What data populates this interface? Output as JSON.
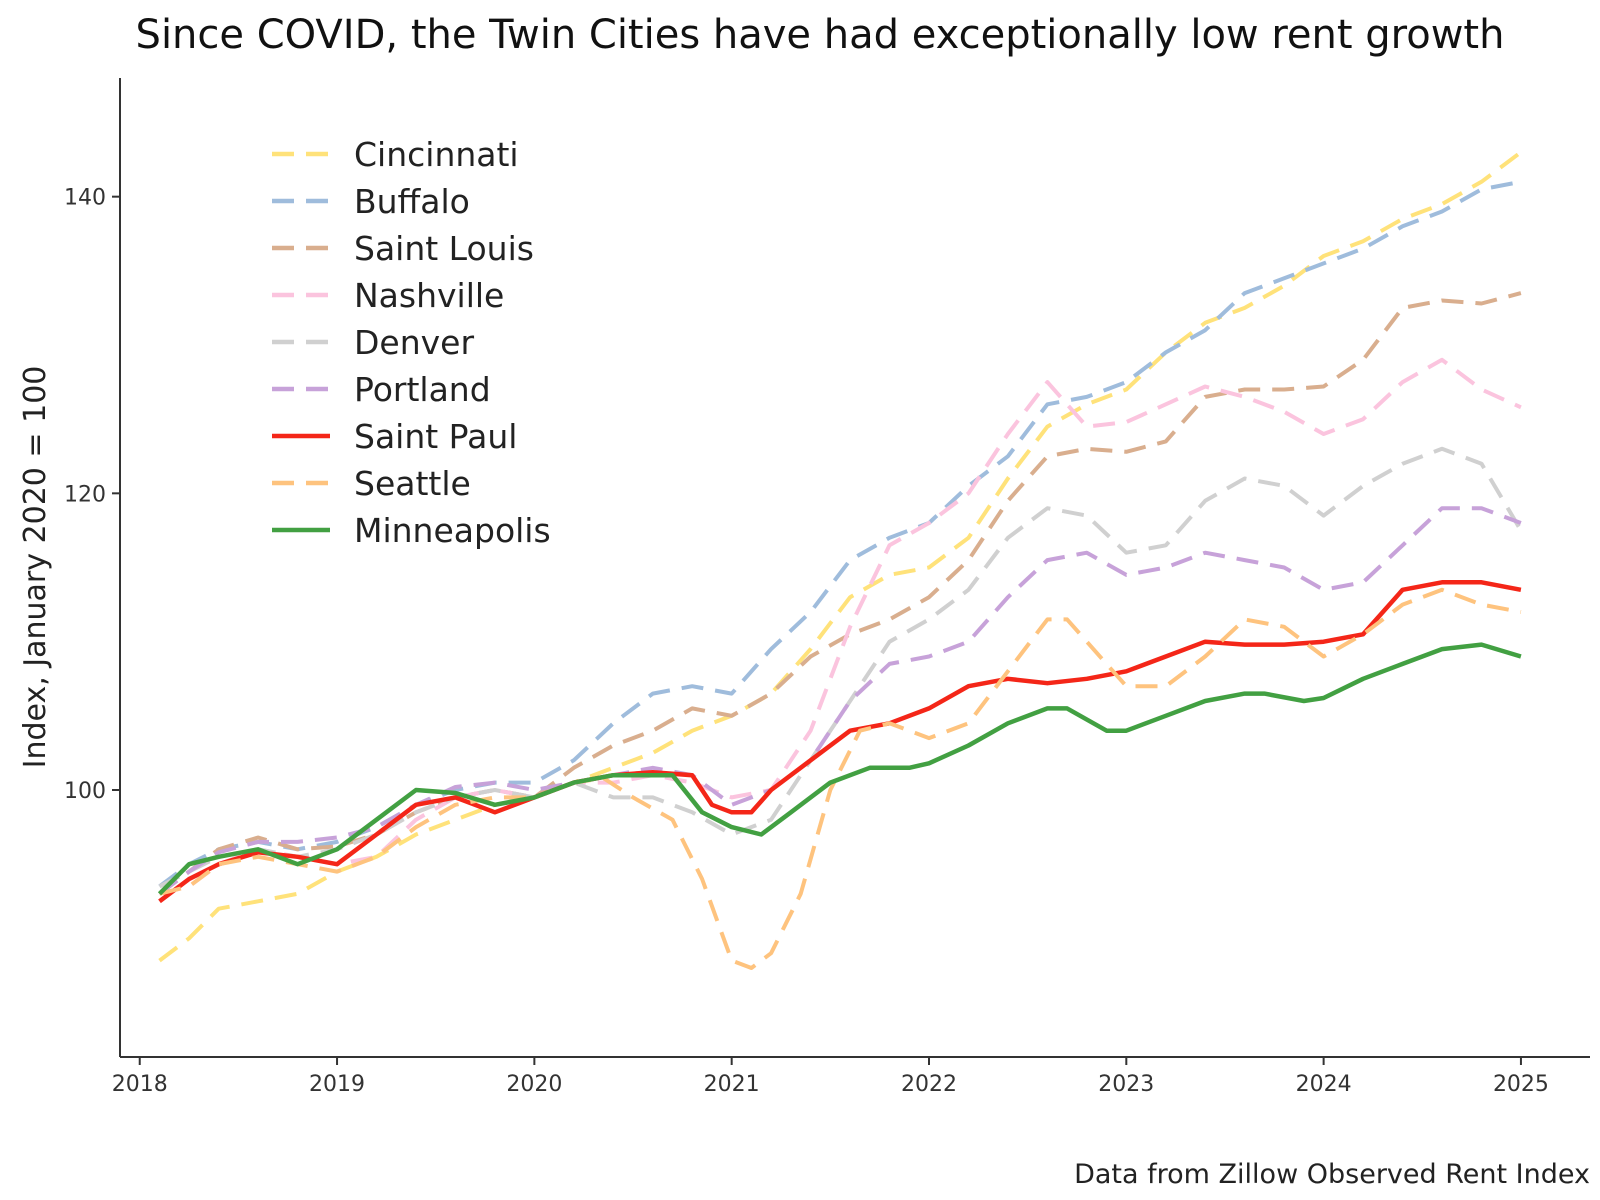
{
  "chart_data": {
    "type": "line",
    "title": "Since COVID, the Twin Cities have had exceptionally low rent growth",
    "ylabel": "Index, January 2020 = 100",
    "xlabel": "",
    "caption": "Data from Zillow Observed Rent Index",
    "xlim": [
      2017.9,
      2025.35
    ],
    "ylim": [
      82,
      148
    ],
    "xticks": [
      2018,
      2019,
      2020,
      2021,
      2022,
      2023,
      2024,
      2025
    ],
    "xtick_labels": [
      "2018",
      "2019",
      "2020",
      "2021",
      "2022",
      "2023",
      "2024",
      "2025"
    ],
    "yticks": [
      100,
      120,
      140
    ],
    "ytick_labels": [
      "100",
      "120",
      "140"
    ],
    "grid": false,
    "legend_position": "top-left",
    "series": [
      {
        "name": "Cincinnati",
        "color": "#FFE27A",
        "style": "dashed",
        "x": [
          2018.1,
          2018.25,
          2018.4,
          2018.6,
          2018.8,
          2019.0,
          2019.2,
          2019.4,
          2019.6,
          2019.8,
          2020.0,
          2020.2,
          2020.4,
          2020.6,
          2020.8,
          2021.0,
          2021.2,
          2021.4,
          2021.6,
          2021.8,
          2022.0,
          2022.2,
          2022.4,
          2022.6,
          2022.8,
          2023.0,
          2023.2,
          2023.4,
          2023.6,
          2023.8,
          2024.0,
          2024.2,
          2024.4,
          2024.6,
          2024.8,
          2025.0
        ],
        "y": [
          88.5,
          90.0,
          92.0,
          92.5,
          93.0,
          94.5,
          95.5,
          97.0,
          98.0,
          99.0,
          99.5,
          100.5,
          101.5,
          102.5,
          104.0,
          105.0,
          106.5,
          109.5,
          113.0,
          114.5,
          115.0,
          117.0,
          121.0,
          124.5,
          126.0,
          127.0,
          129.5,
          131.5,
          132.5,
          134.0,
          136.0,
          137.0,
          138.5,
          139.5,
          141.0,
          143.0
        ]
      },
      {
        "name": "Buffalo",
        "color": "#9FBCDC",
        "style": "dashed",
        "x": [
          2018.1,
          2018.25,
          2018.4,
          2018.6,
          2018.8,
          2019.0,
          2019.2,
          2019.4,
          2019.6,
          2019.8,
          2020.0,
          2020.2,
          2020.4,
          2020.6,
          2020.8,
          2021.0,
          2021.2,
          2021.4,
          2021.6,
          2021.8,
          2022.0,
          2022.2,
          2022.4,
          2022.6,
          2022.8,
          2023.0,
          2023.2,
          2023.4,
          2023.6,
          2023.8,
          2024.0,
          2024.2,
          2024.4,
          2024.6,
          2024.8,
          2025.0
        ],
        "y": [
          93.5,
          95.0,
          96.0,
          96.5,
          96.0,
          96.5,
          97.5,
          99.0,
          100.0,
          100.5,
          100.5,
          102.0,
          104.5,
          106.5,
          107.0,
          106.5,
          109.5,
          112.0,
          115.5,
          117.0,
          118.0,
          120.5,
          122.5,
          126.0,
          126.5,
          127.5,
          129.5,
          131.0,
          133.5,
          134.5,
          135.5,
          136.5,
          138.0,
          139.0,
          140.5,
          141.0
        ]
      },
      {
        "name": "Saint Louis",
        "color": "#D9AE8E",
        "style": "dashed",
        "x": [
          2018.1,
          2018.25,
          2018.4,
          2018.6,
          2018.8,
          2019.0,
          2019.2,
          2019.4,
          2019.6,
          2019.8,
          2020.0,
          2020.2,
          2020.4,
          2020.6,
          2020.8,
          2021.0,
          2021.2,
          2021.4,
          2021.6,
          2021.8,
          2022.0,
          2022.2,
          2022.4,
          2022.6,
          2022.8,
          2023.0,
          2023.2,
          2023.4,
          2023.6,
          2023.8,
          2024.0,
          2024.2,
          2024.4,
          2024.6,
          2024.8,
          2025.0
        ],
        "y": [
          93.0,
          94.5,
          96.0,
          96.8,
          96.0,
          96.2,
          97.0,
          98.5,
          99.5,
          100.0,
          99.5,
          101.5,
          103.0,
          104.0,
          105.5,
          105.0,
          106.5,
          109.0,
          110.5,
          111.5,
          113.0,
          115.5,
          119.5,
          122.5,
          123.0,
          122.8,
          123.5,
          126.5,
          127.0,
          127.0,
          127.2,
          129.0,
          132.5,
          133.0,
          132.8,
          133.5
        ]
      },
      {
        "name": "Nashville",
        "color": "#FBC4DE",
        "style": "dashed",
        "x": [
          2018.1,
          2018.25,
          2018.4,
          2018.6,
          2018.8,
          2019.0,
          2019.2,
          2019.4,
          2019.6,
          2019.8,
          2020.0,
          2020.2,
          2020.4,
          2020.6,
          2020.8,
          2021.0,
          2021.2,
          2021.4,
          2021.6,
          2021.8,
          2022.0,
          2022.2,
          2022.4,
          2022.6,
          2022.8,
          2023.0,
          2023.2,
          2023.4,
          2023.6,
          2023.8,
          2024.0,
          2024.2,
          2024.4,
          2024.6,
          2024.8,
          2025.0
        ],
        "y": [
          93.0,
          93.5,
          95.0,
          96.0,
          95.5,
          95.0,
          95.5,
          98.0,
          99.5,
          100.0,
          99.5,
          100.5,
          100.5,
          101.0,
          100.5,
          99.5,
          100.0,
          104.0,
          111.0,
          116.5,
          118.0,
          120.0,
          124.0,
          127.5,
          124.5,
          124.8,
          126.0,
          127.2,
          126.5,
          125.5,
          124.0,
          125.0,
          127.5,
          129.0,
          127.0,
          125.8
        ]
      },
      {
        "name": "Denver",
        "color": "#D0D0D0",
        "style": "dashed",
        "x": [
          2018.1,
          2018.25,
          2018.4,
          2018.6,
          2018.8,
          2019.0,
          2019.2,
          2019.4,
          2019.6,
          2019.8,
          2020.0,
          2020.2,
          2020.4,
          2020.6,
          2020.8,
          2021.0,
          2021.2,
          2021.4,
          2021.6,
          2021.8,
          2022.0,
          2022.2,
          2022.4,
          2022.6,
          2022.8,
          2023.0,
          2023.2,
          2023.4,
          2023.6,
          2023.8,
          2024.0,
          2024.2,
          2024.4,
          2024.6,
          2024.8,
          2025.0
        ],
        "y": [
          93.5,
          94.5,
          95.5,
          96.0,
          95.5,
          96.0,
          97.0,
          98.5,
          99.5,
          100.0,
          99.5,
          100.5,
          99.5,
          99.5,
          98.5,
          97.0,
          98.0,
          102.0,
          106.0,
          110.0,
          111.5,
          113.5,
          117.0,
          119.0,
          118.5,
          116.0,
          116.5,
          119.5,
          121.0,
          120.5,
          118.5,
          120.5,
          122.0,
          123.0,
          122.0,
          117.5
        ]
      },
      {
        "name": "Portland",
        "color": "#C7A2D9",
        "style": "dashed",
        "x": [
          2018.1,
          2018.25,
          2018.4,
          2018.6,
          2018.8,
          2019.0,
          2019.2,
          2019.4,
          2019.6,
          2019.8,
          2020.0,
          2020.2,
          2020.4,
          2020.6,
          2020.8,
          2021.0,
          2021.2,
          2021.4,
          2021.6,
          2021.8,
          2022.0,
          2022.2,
          2022.4,
          2022.6,
          2022.8,
          2023.0,
          2023.2,
          2023.4,
          2023.6,
          2023.8,
          2024.0,
          2024.2,
          2024.4,
          2024.6,
          2024.8,
          2025.0
        ],
        "y": [
          93.0,
          94.5,
          95.8,
          96.5,
          96.5,
          96.8,
          97.5,
          99.0,
          100.2,
          100.5,
          100.0,
          100.5,
          101.0,
          101.5,
          101.0,
          99.0,
          100.0,
          102.0,
          106.0,
          108.5,
          109.0,
          110.0,
          113.0,
          115.5,
          116.0,
          114.5,
          115.0,
          116.0,
          115.5,
          115.0,
          113.5,
          114.0,
          116.5,
          119.0,
          119.0,
          118.0
        ]
      },
      {
        "name": "Saint Paul",
        "color": "#F42618",
        "style": "solid",
        "x": [
          2018.1,
          2018.25,
          2018.4,
          2018.6,
          2018.8,
          2019.0,
          2019.2,
          2019.4,
          2019.6,
          2019.8,
          2020.0,
          2020.2,
          2020.4,
          2020.6,
          2020.8,
          2020.9,
          2021.0,
          2021.1,
          2021.2,
          2021.4,
          2021.6,
          2021.8,
          2022.0,
          2022.2,
          2022.4,
          2022.6,
          2022.8,
          2023.0,
          2023.2,
          2023.4,
          2023.6,
          2023.8,
          2024.0,
          2024.2,
          2024.4,
          2024.6,
          2024.8,
          2025.0
        ],
        "y": [
          92.5,
          94.0,
          95.0,
          95.8,
          95.5,
          95.0,
          97.0,
          99.0,
          99.5,
          98.5,
          99.5,
          100.5,
          101.0,
          101.2,
          101.0,
          99.0,
          98.5,
          98.5,
          100.0,
          102.0,
          104.0,
          104.5,
          105.5,
          107.0,
          107.5,
          107.2,
          107.5,
          108.0,
          109.0,
          110.0,
          109.8,
          109.8,
          110.0,
          110.5,
          113.5,
          114.0,
          114.0,
          113.5
        ]
      },
      {
        "name": "Seattle",
        "color": "#FEC37E",
        "style": "dashed",
        "x": [
          2018.1,
          2018.25,
          2018.4,
          2018.6,
          2018.8,
          2019.0,
          2019.2,
          2019.4,
          2019.6,
          2019.8,
          2020.0,
          2020.2,
          2020.35,
          2020.5,
          2020.7,
          2020.85,
          2021.0,
          2021.1,
          2021.2,
          2021.35,
          2021.5,
          2021.65,
          2021.8,
          2022.0,
          2022.2,
          2022.4,
          2022.6,
          2022.7,
          2022.8,
          2023.0,
          2023.2,
          2023.4,
          2023.6,
          2023.8,
          2024.0,
          2024.2,
          2024.4,
          2024.6,
          2024.8,
          2025.0
        ],
        "y": [
          93.0,
          93.5,
          95.0,
          95.5,
          95.0,
          94.5,
          95.5,
          97.5,
          99.0,
          99.5,
          99.5,
          100.5,
          100.8,
          99.5,
          98.0,
          94.0,
          88.5,
          88.0,
          89.0,
          93.0,
          100.0,
          104.0,
          104.5,
          103.5,
          104.5,
          108.0,
          111.5,
          111.5,
          110.0,
          107.0,
          107.0,
          109.0,
          111.5,
          111.0,
          109.0,
          110.5,
          112.5,
          113.5,
          112.5,
          112.0
        ]
      },
      {
        "name": "Minneapolis",
        "color": "#42A042",
        "style": "solid",
        "x": [
          2018.1,
          2018.25,
          2018.4,
          2018.6,
          2018.8,
          2019.0,
          2019.2,
          2019.4,
          2019.6,
          2019.8,
          2020.0,
          2020.2,
          2020.4,
          2020.6,
          2020.7,
          2020.85,
          2021.0,
          2021.15,
          2021.3,
          2021.5,
          2021.7,
          2021.9,
          2022.0,
          2022.2,
          2022.4,
          2022.6,
          2022.7,
          2022.9,
          2023.0,
          2023.2,
          2023.4,
          2023.6,
          2023.7,
          2023.9,
          2024.0,
          2024.2,
          2024.4,
          2024.6,
          2024.8,
          2025.0
        ],
        "y": [
          93.0,
          95.0,
          95.5,
          96.0,
          95.0,
          96.0,
          98.0,
          100.0,
          99.8,
          99.0,
          99.5,
          100.5,
          101.0,
          101.0,
          101.0,
          98.5,
          97.5,
          97.0,
          98.5,
          100.5,
          101.5,
          101.5,
          101.8,
          103.0,
          104.5,
          105.5,
          105.5,
          104.0,
          104.0,
          105.0,
          106.0,
          106.5,
          106.5,
          106.0,
          106.2,
          107.5,
          108.5,
          109.5,
          109.8,
          109.0
        ]
      }
    ]
  }
}
